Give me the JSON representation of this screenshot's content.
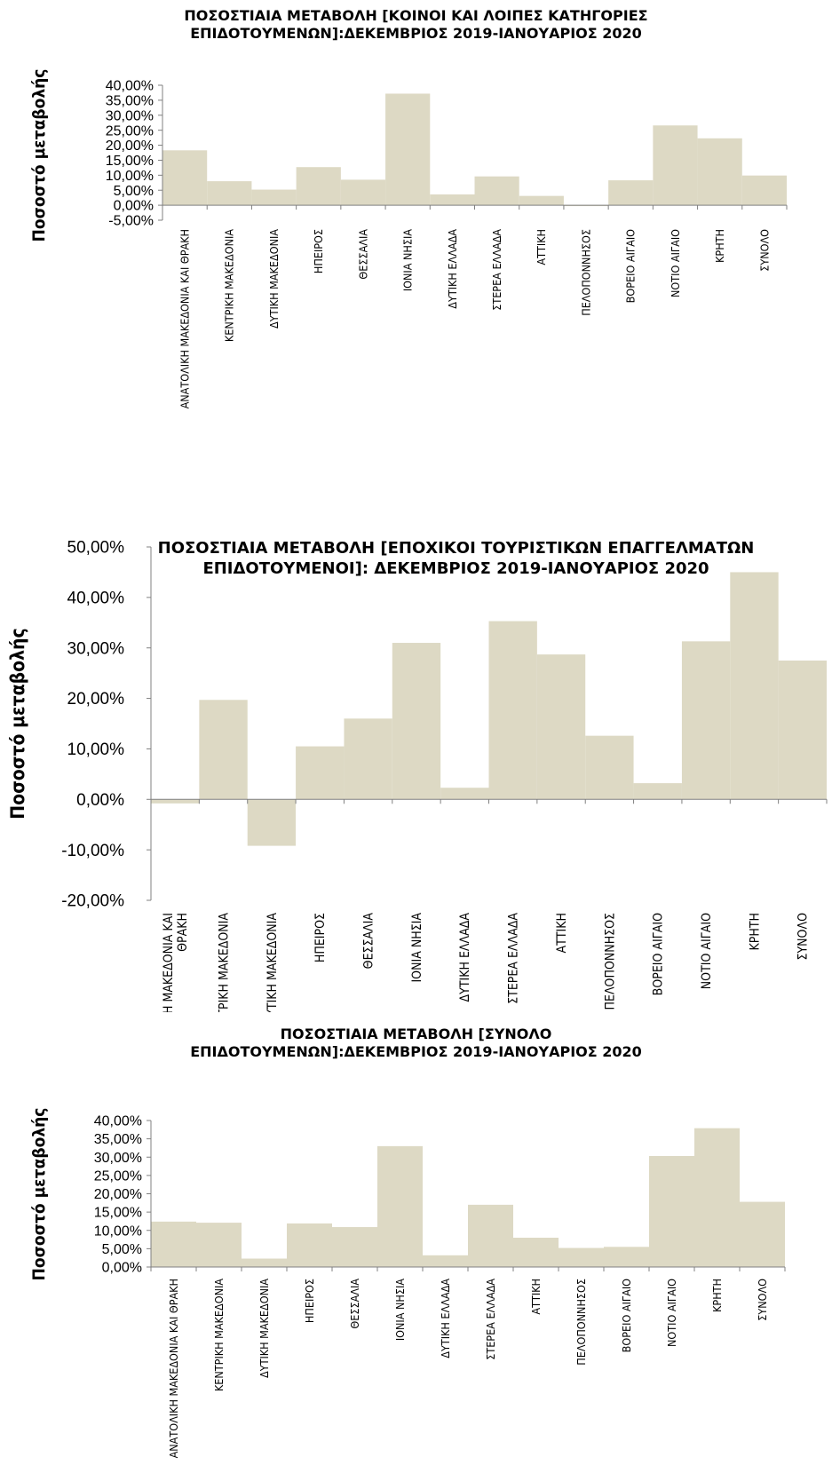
{
  "chart_data": [
    {
      "type": "bar",
      "title": "ΠΟΣΟΣΤΙΑΙΑ ΜΕΤΑΒΟΛΗ [ΚΟΙΝΟΙ ΚΑΙ ΛΟΙΠΕΣ ΚΑΤΗΓΟΡΙΕΣ ΕΠΙΔΟΤΟΥΜΕΝΩΝ]:ΔΕΚΕΜΒΡΙΟΣ 2019-ΙΑΝΟΥΑΡΙΟΣ 2020",
      "title_lines": [
        "ΠΟΣΟΣΤΙΑΙΑ ΜΕΤΑΒΟΛΗ [ΚΟΙΝΟΙ ΚΑΙ ΛΟΙΠΕΣ ΚΑΤΗΓΟΡΙΕΣ",
        "ΕΠΙΔΟΤΟΥΜΕΝΩΝ]:ΔΕΚΕΜΒΡΙΟΣ 2019-ΙΑΝΟΥΑΡΙΟΣ 2020"
      ],
      "ylabel": "Ποσοστό μεταβολής",
      "categories": [
        "ΑΝΑΤΟΛΙΚΗ ΜΑΚΕΔΟΝΙΑ ΚΑΙ ΘΡΑΚΗ",
        "ΚΕΝΤΡΙΚΗ ΜΑΚΕΔΟΝΙΑ",
        "ΔΥΤΙΚΗ ΜΑΚΕΔΟΝΙΑ",
        "ΗΠΕΙΡΟΣ",
        "ΘΕΣΣΑΛΙΑ",
        "ΙΟΝΙΑ ΝΗΣΙΑ",
        "ΔΥΤΙΚΗ ΕΛΛΑΔΑ",
        "ΣΤΕΡΕΑ ΕΛΛΑΔΑ",
        "ΑΤΤΙΚΗ",
        "ΠΕΛΟΠΟΝΝΗΣΟΣ",
        "ΒΟΡΕΙΟ ΑΙΓΑΙΟ",
        "ΝΟΤΙΟ ΑΙΓΑΙΟ",
        "ΚΡΗΤΗ",
        "ΣΥΝΟΛΟ"
      ],
      "category_lines": [
        [
          "ΑΝΑΤΟΛΙΚΗ ΜΑΚΕΔΟΝΙΑ ΚΑΙ ΘΡΑΚΗ"
        ],
        [
          "ΚΕΝΤΡΙΚΗ ΜΑΚΕΔΟΝΙΑ"
        ],
        [
          "ΔΥΤΙΚΗ ΜΑΚΕΔΟΝΙΑ"
        ],
        [
          "ΗΠΕΙΡΟΣ"
        ],
        [
          "ΘΕΣΣΑΛΙΑ"
        ],
        [
          "ΙΟΝΙΑ ΝΗΣΙΑ"
        ],
        [
          "ΔΥΤΙΚΗ ΕΛΛΑΔΑ"
        ],
        [
          "ΣΤΕΡΕΑ ΕΛΛΑΔΑ"
        ],
        [
          "ΑΤΤΙΚΗ"
        ],
        [
          "ΠΕΛΟΠΟΝΝΗΣΟΣ"
        ],
        [
          "ΒΟΡΕΙΟ ΑΙΓΑΙΟ"
        ],
        [
          "ΝΟΤΙΟ ΑΙΓΑΙΟ"
        ],
        [
          "ΚΡΗΤΗ"
        ],
        [
          "ΣΥΝΟΛΟ"
        ]
      ],
      "values": [
        18.3,
        8.0,
        5.2,
        12.7,
        8.5,
        37.2,
        3.6,
        9.6,
        3.1,
        -0.3,
        8.3,
        26.6,
        22.3,
        9.9
      ],
      "ylim": [
        -5,
        40
      ],
      "yticks": [
        -5,
        0,
        5,
        10,
        15,
        20,
        25,
        30,
        35,
        40
      ],
      "ytick_labels": [
        "-5,00%",
        "0,00%",
        "5,00%",
        "10,00%",
        "15,00%",
        "20,00%",
        "25,00%",
        "30,00%",
        "35,00%",
        "40,00%"
      ],
      "grid": false,
      "legend": "none",
      "bar_color": "#ddd9c4"
    },
    {
      "type": "bar",
      "title": "ΠΟΣΟΣΤΙΑΙΑ ΜΕΤΑΒΟΛΗ [ΕΠΟΧΙΚΟΙ ΤΟΥΡΙΣΤΙΚΩΝ ΕΠΑΓΓΕΛΜΑΤΩΝ ΕΠΙΔΟΤΟΥΜΕΝΟΙ]: ΔΕΚΕΜΒΡΙΟΣ 2019-ΙΑΝΟΥΑΡΙΟΣ 2020",
      "title_lines": [
        "ΠΟΣΟΣΤΙΑΙΑ ΜΕΤΑΒΟΛΗ [ΕΠΟΧΙΚΟΙ ΤΟΥΡΙΣΤΙΚΩΝ ΕΠΑΓΓΕΛΜΑΤΩΝ",
        "ΕΠΙΔΟΤΟΥΜΕΝΟΙ]: ΔΕΚΕΜΒΡΙΟΣ 2019-ΙΑΝΟΥΑΡΙΟΣ 2020"
      ],
      "ylabel": "Ποσοστό μεταβολής",
      "categories": [
        "ΑΝΑΤΟΛΙΚΗ ΜΑΚΕΔΟΝΙΑ ΚΑΙ ΘΡΑΚΗ",
        "ΚΕΝΤΡΙΚΗ ΜΑΚΕΔΟΝΙΑ",
        "ΔΥΤΙΚΗ ΜΑΚΕΔΟΝΙΑ",
        "ΗΠΕΙΡΟΣ",
        "ΘΕΣΣΑΛΙΑ",
        "ΙΟΝΙΑ ΝΗΣΙΑ",
        "ΔΥΤΙΚΗ ΕΛΛΑΔΑ",
        "ΣΤΕΡΕΑ ΕΛΛΑΔΑ",
        "ΑΤΤΙΚΗ",
        "ΠΕΛΟΠΟΝΝΗΣΟΣ",
        "ΒΟΡΕΙΟ ΑΙΓΑΙΟ",
        "ΝΟΤΙΟ ΑΙΓΑΙΟ",
        "ΚΡΗΤΗ",
        "ΣΥΝΟΛΟ"
      ],
      "category_lines": [
        [
          "ΑΝΑΤΟΛΙΚΗ ΜΑΚΕΔΟΝΙΑ ΚΑΙ",
          "ΘΡΑΚΗ"
        ],
        [
          "ΚΕΝΤΡΙΚΗ ΜΑΚΕΔΟΝΙΑ"
        ],
        [
          "ΔΥΤΙΚΗ ΜΑΚΕΔΟΝΙΑ"
        ],
        [
          "ΗΠΕΙΡΟΣ"
        ],
        [
          "ΘΕΣΣΑΛΙΑ"
        ],
        [
          "ΙΟΝΙΑ ΝΗΣΙΑ"
        ],
        [
          "ΔΥΤΙΚΗ ΕΛΛΑΔΑ"
        ],
        [
          "ΣΤΕΡΕΑ ΕΛΛΑΔΑ"
        ],
        [
          "ΑΤΤΙΚΗ"
        ],
        [
          "ΠΕΛΟΠΟΝΝΗΣΟΣ"
        ],
        [
          "ΒΟΡΕΙΟ ΑΙΓΑΙΟ"
        ],
        [
          "ΝΟΤΙΟ ΑΙΓΑΙΟ"
        ],
        [
          "ΚΡΗΤΗ"
        ],
        [
          "ΣΥΝΟΛΟ"
        ]
      ],
      "values": [
        -0.8,
        19.7,
        -9.2,
        10.5,
        16.0,
        31.0,
        2.3,
        35.3,
        28.7,
        12.6,
        3.2,
        31.3,
        45.0,
        27.5
      ],
      "ylim": [
        -20,
        50
      ],
      "yticks": [
        -20,
        -10,
        0,
        10,
        20,
        30,
        40,
        50
      ],
      "ytick_labels": [
        "-20,00%",
        "-10,00%",
        "0,00%",
        "10,00%",
        "20,00%",
        "30,00%",
        "40,00%",
        "50,00%"
      ],
      "grid": false,
      "legend": "none",
      "bar_color": "#ddd9c4"
    },
    {
      "type": "bar",
      "title": "ΠΟΣΟΣΤΙΑΙΑ ΜΕΤΑΒΟΛΗ [ΣΥΝΟΛΟ ΕΠΙΔΟΤΟΥΜΕΝΩΝ]:ΔΕΚΕΜΒΡΙΟΣ 2019-ΙΑΝΟΥΑΡΙΟΣ 2020",
      "title_lines": [
        "ΠΟΣΟΣΤΙΑΙΑ ΜΕΤΑΒΟΛΗ [ΣΥΝΟΛΟ",
        "ΕΠΙΔΟΤΟΥΜΕΝΩΝ]:ΔΕΚΕΜΒΡΙΟΣ 2019-ΙΑΝΟΥΑΡΙΟΣ 2020"
      ],
      "ylabel": "Ποσοστό μεταβολής",
      "categories": [
        "ΑΝΑΤΟΛΙΚΗ ΜΑΚΕΔΟΝΙΑ ΚΑΙ ΘΡΑΚΗ",
        "ΚΕΝΤΡΙΚΗ ΜΑΚΕΔΟΝΙΑ",
        "ΔΥΤΙΚΗ ΜΑΚΕΔΟΝΙΑ",
        "ΗΠΕΙΡΟΣ",
        "ΘΕΣΣΑΛΙΑ",
        "ΙΟΝΙΑ ΝΗΣΙΑ",
        "ΔΥΤΙΚΗ ΕΛΛΑΔΑ",
        "ΣΤΕΡΕΑ ΕΛΛΑΔΑ",
        "ΑΤΤΙΚΗ",
        "ΠΕΛΟΠΟΝΝΗΣΟΣ",
        "ΒΟΡΕΙΟ ΑΙΓΑΙΟ",
        "ΝΟΤΙΟ ΑΙΓΑΙΟ",
        "ΚΡΗΤΗ",
        "ΣΥΝΟΛΟ"
      ],
      "category_lines": [
        [
          "ΑΝΑΤΟΛΙΚΗ ΜΑΚΕΔΟΝΙΑ ΚΑΙ ΘΡΑΚΗ"
        ],
        [
          "ΚΕΝΤΡΙΚΗ ΜΑΚΕΔΟΝΙΑ"
        ],
        [
          "ΔΥΤΙΚΗ ΜΑΚΕΔΟΝΙΑ"
        ],
        [
          "ΗΠΕΙΡΟΣ"
        ],
        [
          "ΘΕΣΣΑΛΙΑ"
        ],
        [
          "ΙΟΝΙΑ ΝΗΣΙΑ"
        ],
        [
          "ΔΥΤΙΚΗ ΕΛΛΑΔΑ"
        ],
        [
          "ΣΤΕΡΕΑ ΕΛΛΑΔΑ"
        ],
        [
          "ΑΤΤΙΚΗ"
        ],
        [
          "ΠΕΛΟΠΟΝΝΗΣΟΣ"
        ],
        [
          "ΒΟΡΕΙΟ ΑΙΓΑΙΟ"
        ],
        [
          "ΝΟΤΙΟ ΑΙΓΑΙΟ"
        ],
        [
          "ΚΡΗΤΗ"
        ],
        [
          "ΣΥΝΟΛΟ"
        ]
      ],
      "values": [
        12.4,
        12.1,
        2.3,
        11.9,
        10.9,
        33.0,
        3.2,
        17.0,
        8.0,
        5.2,
        5.5,
        30.3,
        37.9,
        17.8
      ],
      "ylim": [
        0,
        40
      ],
      "yticks": [
        0,
        5,
        10,
        15,
        20,
        25,
        30,
        35,
        40
      ],
      "ytick_labels": [
        "0,00%",
        "5,00%",
        "10,00%",
        "15,00%",
        "20,00%",
        "25,00%",
        "30,00%",
        "35,00%",
        "40,00%"
      ],
      "grid": false,
      "legend": "none",
      "bar_color": "#ddd9c4"
    }
  ]
}
